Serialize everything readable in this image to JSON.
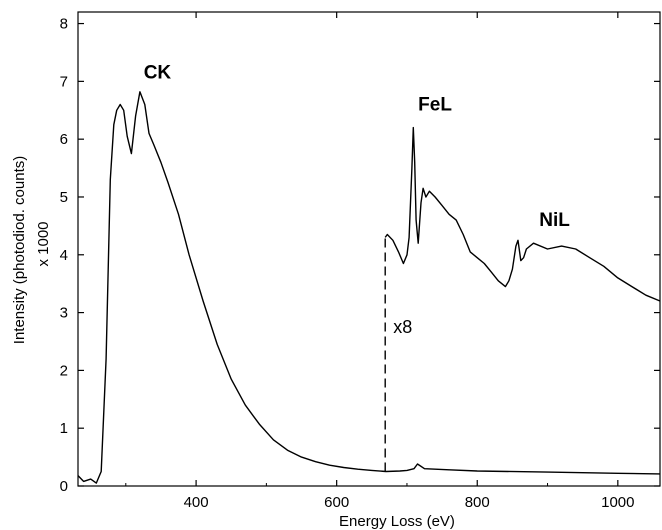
{
  "chart_data": {
    "type": "line",
    "title": "",
    "xlabel": "Energy Loss (eV)",
    "ylabel": "Intensity (photodiod. counts)",
    "ylabel_multiplier": "x 1000",
    "xlim": [
      232,
      1060
    ],
    "ylim": [
      0,
      8.2
    ],
    "xticks": [
      400,
      600,
      800,
      1000
    ],
    "yticks": [
      0,
      1,
      2,
      3,
      4,
      5,
      6,
      7,
      8
    ],
    "grid": false,
    "legend": "none",
    "line_color": "#000000",
    "series": [
      {
        "role": "full-spectrum",
        "style": "solid",
        "x": [
          232,
          240,
          250,
          258,
          265,
          272,
          278,
          283,
          287,
          292,
          297,
          302,
          308,
          314,
          320,
          327,
          333,
          340,
          350,
          360,
          375,
          390,
          410,
          430,
          450,
          470,
          490,
          510,
          530,
          550,
          570,
          590,
          610,
          630,
          650,
          670,
          690,
          700,
          710,
          715,
          725,
          760,
          800,
          900,
          1000,
          1060
        ],
        "y": [
          0.18,
          0.08,
          0.12,
          0.05,
          0.25,
          2.2,
          5.3,
          6.25,
          6.5,
          6.6,
          6.5,
          6.05,
          5.75,
          6.4,
          6.82,
          6.6,
          6.1,
          5.9,
          5.6,
          5.25,
          4.7,
          4.0,
          3.2,
          2.45,
          1.85,
          1.4,
          1.07,
          0.8,
          0.62,
          0.5,
          0.42,
          0.36,
          0.32,
          0.29,
          0.27,
          0.25,
          0.26,
          0.27,
          0.3,
          0.38,
          0.3,
          0.28,
          0.26,
          0.24,
          0.22,
          0.21
        ]
      },
      {
        "role": "magnified",
        "style": "solid",
        "x": [
          669,
          672,
          680,
          688,
          695,
          700,
          703,
          707,
          709,
          711,
          713,
          716,
          720,
          723,
          727,
          732,
          740,
          750,
          760,
          770,
          780,
          790,
          800,
          810,
          820,
          830,
          840,
          845,
          850,
          855,
          858,
          862,
          866,
          870,
          880,
          900,
          920,
          940,
          960,
          980,
          1000,
          1020,
          1040,
          1060
        ],
        "y": [
          4.3,
          4.35,
          4.25,
          4.05,
          3.85,
          4.0,
          4.3,
          5.5,
          6.2,
          5.6,
          4.6,
          4.2,
          4.9,
          5.15,
          5.0,
          5.1,
          5.0,
          4.85,
          4.7,
          4.6,
          4.35,
          4.05,
          3.95,
          3.85,
          3.7,
          3.55,
          3.45,
          3.55,
          3.75,
          4.15,
          4.25,
          3.9,
          3.95,
          4.1,
          4.2,
          4.1,
          4.15,
          4.1,
          3.95,
          3.8,
          3.6,
          3.45,
          3.3,
          3.2
        ]
      },
      {
        "role": "edge-marker",
        "style": "dashed",
        "x": [
          669,
          669
        ],
        "y": [
          0.25,
          4.3
        ]
      }
    ],
    "annotations": [
      {
        "text": "CK",
        "x": 345,
        "y": 7.05,
        "weight": "bold"
      },
      {
        "text": "FeL",
        "x": 740,
        "y": 6.5,
        "weight": "bold"
      },
      {
        "text": "NiL",
        "x": 910,
        "y": 4.5,
        "weight": "bold"
      },
      {
        "text": "x8",
        "x": 694,
        "y": 2.65,
        "weight": "normal"
      }
    ]
  }
}
